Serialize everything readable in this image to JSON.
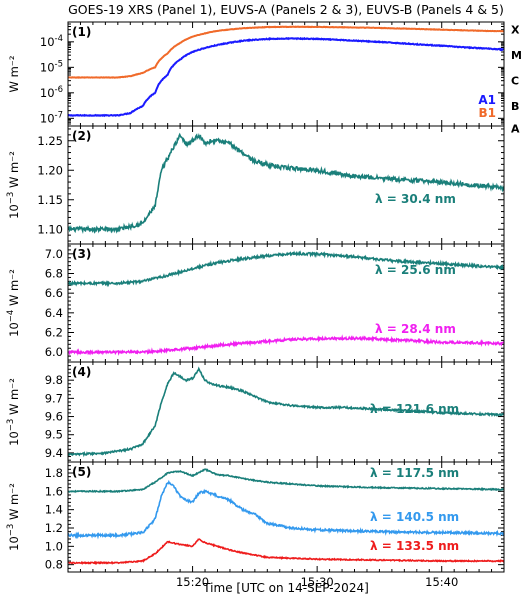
{
  "title": "GOES-19 XRS (Panel 1), EUVS-A (Panels 2 & 3), EUVS-B (Panels 4 & 5)",
  "xlabel": "Time [UTC on 14-SEP-2024]",
  "colors": {
    "A1": "#1a1aff",
    "B1": "#f06a2a",
    "teal": "#1a7f7a",
    "magenta": "#f020f0",
    "lightblue": "#3399ee",
    "red": "#ee1c1c"
  },
  "chart_data": [
    {
      "type": "line",
      "panel": "(1)",
      "ylabel": "W m⁻²",
      "yscale": "log",
      "ylim": [
        5e-08,
        0.0006
      ],
      "xlim": [
        "15:10",
        "15:45"
      ],
      "x_ticks": [
        "15:20",
        "15:30",
        "15:40"
      ],
      "y_ticks": [
        {
          "value": 1e-07,
          "mant": "10",
          "exp": "-7"
        },
        {
          "value": 1e-06,
          "mant": "10",
          "exp": "-6"
        },
        {
          "value": 1e-05,
          "mant": "10",
          "exp": "-5"
        },
        {
          "value": 0.0001,
          "mant": "10",
          "exp": "-4"
        }
      ],
      "flare_classes": [
        {
          "label": "A",
          "value": 4e-08
        },
        {
          "label": "B",
          "value": 3e-07
        },
        {
          "label": "C",
          "value": 3e-06
        },
        {
          "label": "M",
          "value": 3e-05
        },
        {
          "label": "X",
          "value": 0.0003
        }
      ],
      "series": [
        {
          "name": "A1",
          "color_key": "A1",
          "noise": 0.015,
          "log": true,
          "x": [
            "15:10",
            "15:14",
            "15:15",
            "15:16",
            "15:17",
            "15:18",
            "15:19",
            "15:20",
            "15:22",
            "15:24",
            "15:26",
            "15:28",
            "15:30",
            "15:34",
            "15:38",
            "15:42",
            "15:45"
          ],
          "y": [
            1.3e-07,
            1.3e-07,
            1.6e-07,
            3e-07,
            1e-06,
            5e-06,
            2e-05,
            4e-05,
            7.5e-05,
            0.00011,
            0.00013,
            0.000135,
            0.00013,
            0.000105,
            8e-05,
            6e-05,
            5e-05
          ]
        },
        {
          "name": "B1",
          "color_key": "B1",
          "noise": 0.008,
          "log": true,
          "x": [
            "15:10",
            "15:14",
            "15:15",
            "15:16",
            "15:17",
            "15:18",
            "15:19",
            "15:20",
            "15:22",
            "15:24",
            "15:26",
            "15:28",
            "15:30",
            "15:34",
            "15:38",
            "15:42",
            "15:45"
          ],
          "y": [
            4e-06,
            4e-06,
            4.5e-06,
            6e-06,
            1e-05,
            3.5e-05,
            9e-05,
            0.00016,
            0.00027,
            0.00034,
            0.00038,
            0.00039,
            0.000385,
            0.00036,
            0.00032,
            0.00028,
            0.00026
          ]
        }
      ],
      "legend": [
        "A1",
        "B1"
      ],
      "legend_position": "lower-right"
    },
    {
      "type": "line",
      "panel": "(2)",
      "ylabel_mant": "10",
      "ylabel_exp": "−3",
      "ylabel_unit": "W m⁻²",
      "ylim": [
        1.075,
        1.275
      ],
      "xlim": [
        "15:10",
        "15:45"
      ],
      "x_ticks": [
        "15:20",
        "15:30",
        "15:40"
      ],
      "y_ticks": [
        {
          "value": 1.1,
          "label": "1.10"
        },
        {
          "value": 1.15,
          "label": "1.15"
        },
        {
          "value": 1.2,
          "label": "1.20"
        },
        {
          "value": 1.25,
          "label": "1.25"
        }
      ],
      "series": [
        {
          "name": "λ = 30.4 nm",
          "color_key": "teal",
          "noise": 0.0035,
          "x": [
            "15:10",
            "15:14",
            "15:15",
            "15:16",
            "15:17",
            "15:17.5",
            "15:18",
            "15:18.5",
            "15:19",
            "15:19.5",
            "15:20",
            "15:20.5",
            "15:21",
            "15:21.5",
            "15:22",
            "15:23",
            "15:24",
            "15:25",
            "15:27",
            "15:30",
            "15:33",
            "15:36",
            "15:40",
            "15:45"
          ],
          "y": [
            1.1,
            1.1,
            1.105,
            1.11,
            1.14,
            1.2,
            1.22,
            1.24,
            1.26,
            1.245,
            1.25,
            1.26,
            1.245,
            1.25,
            1.25,
            1.245,
            1.23,
            1.215,
            1.205,
            1.2,
            1.19,
            1.185,
            1.18,
            1.17
          ]
        }
      ],
      "series_labels": [
        {
          "text": "λ = 30.4 nm",
          "color_key": "teal"
        }
      ]
    },
    {
      "type": "line",
      "panel": "(3)",
      "ylabel_mant": "10",
      "ylabel_exp": "−4",
      "ylabel_unit": "W m⁻²",
      "ylim": [
        5.9,
        7.1
      ],
      "xlim": [
        "15:10",
        "15:45"
      ],
      "x_ticks": [
        "15:20",
        "15:30",
        "15:40"
      ],
      "y_ticks": [
        {
          "value": 6.0,
          "label": "6.0"
        },
        {
          "value": 6.2,
          "label": "6.2"
        },
        {
          "value": 6.4,
          "label": "6.4"
        },
        {
          "value": 6.6,
          "label": "6.6"
        },
        {
          "value": 6.8,
          "label": "6.8"
        },
        {
          "value": 7.0,
          "label": "7.0"
        }
      ],
      "series": [
        {
          "name": "λ = 25.6 nm",
          "color_key": "teal",
          "noise": 0.012,
          "x": [
            "15:10",
            "15:14",
            "15:16",
            "15:18",
            "15:20",
            "15:22",
            "15:24",
            "15:26",
            "15:28",
            "15:30",
            "15:33",
            "15:36",
            "15:40",
            "15:45"
          ],
          "y": [
            6.7,
            6.7,
            6.72,
            6.78,
            6.85,
            6.91,
            6.95,
            6.98,
            7.0,
            7.0,
            6.97,
            6.93,
            6.9,
            6.86
          ]
        },
        {
          "name": "λ = 28.4 nm",
          "color_key": "magenta",
          "noise": 0.012,
          "x": [
            "15:10",
            "15:14",
            "15:16",
            "15:18",
            "15:20",
            "15:22",
            "15:25",
            "15:28",
            "15:31",
            "15:34",
            "15:37",
            "15:40",
            "15:45"
          ],
          "y": [
            6.0,
            6.0,
            6.0,
            6.02,
            6.04,
            6.07,
            6.1,
            6.13,
            6.14,
            6.14,
            6.12,
            6.1,
            6.09
          ]
        }
      ],
      "series_labels": [
        {
          "text": "λ = 25.6 nm",
          "color_key": "teal"
        },
        {
          "text": "λ = 28.4 nm",
          "color_key": "magenta"
        }
      ]
    },
    {
      "type": "line",
      "panel": "(4)",
      "ylabel_mant": "10",
      "ylabel_exp": "−3",
      "ylabel_unit": "W m⁻²",
      "ylim": [
        9.35,
        9.9
      ],
      "xlim": [
        "15:10",
        "15:45"
      ],
      "x_ticks": [
        "15:20",
        "15:30",
        "15:40"
      ],
      "y_ticks": [
        {
          "value": 9.4,
          "label": "9.4"
        },
        {
          "value": 9.5,
          "label": "9.5"
        },
        {
          "value": 9.6,
          "label": "9.6"
        },
        {
          "value": 9.7,
          "label": "9.7"
        },
        {
          "value": 9.8,
          "label": "9.8"
        }
      ],
      "series": [
        {
          "name": "λ = 121.6 nm",
          "color_key": "teal",
          "noise": 0.005,
          "x": [
            "15:10",
            "15:13",
            "15:15",
            "15:16",
            "15:17",
            "15:17.5",
            "15:18",
            "15:18.5",
            "15:19",
            "15:19.5",
            "15:20",
            "15:20.5",
            "15:21",
            "15:21.5",
            "15:22",
            "15:23",
            "15:24",
            "15:25",
            "15:26",
            "15:28",
            "15:30",
            "15:32",
            "15:35",
            "15:38",
            "15:40",
            "15:45"
          ],
          "y": [
            9.39,
            9.4,
            9.42,
            9.45,
            9.55,
            9.68,
            9.78,
            9.84,
            9.82,
            9.8,
            9.81,
            9.86,
            9.8,
            9.78,
            9.77,
            9.76,
            9.74,
            9.71,
            9.68,
            9.66,
            9.65,
            9.65,
            9.64,
            9.63,
            9.62,
            9.61
          ]
        }
      ],
      "series_labels": [
        {
          "text": "λ = 121.6 nm",
          "color_key": "teal"
        }
      ]
    },
    {
      "type": "line",
      "panel": "(5)",
      "ylabel_mant": "10",
      "ylabel_exp": "−3",
      "ylabel_unit": "W m⁻²",
      "ylim": [
        0.72,
        1.92
      ],
      "xlim": [
        "15:10",
        "15:45"
      ],
      "x_ticks": [
        "15:20",
        "15:30",
        "15:40"
      ],
      "y_ticks": [
        {
          "value": 0.8,
          "label": "0.8"
        },
        {
          "value": 1.0,
          "label": "1.0"
        },
        {
          "value": 1.2,
          "label": "1.2"
        },
        {
          "value": 1.4,
          "label": "1.4"
        },
        {
          "value": 1.6,
          "label": "1.6"
        },
        {
          "value": 1.8,
          "label": "1.8"
        }
      ],
      "series": [
        {
          "name": "λ = 117.5 nm",
          "color_key": "teal",
          "noise": 0.006,
          "x": [
            "15:10",
            "15:14",
            "15:16",
            "15:17",
            "15:18",
            "15:19",
            "15:20",
            "15:21",
            "15:22",
            "15:23",
            "15:24",
            "15:26",
            "15:30",
            "15:35",
            "15:40",
            "15:45"
          ],
          "y": [
            1.6,
            1.6,
            1.62,
            1.7,
            1.8,
            1.82,
            1.77,
            1.84,
            1.78,
            1.77,
            1.74,
            1.7,
            1.66,
            1.64,
            1.63,
            1.62
          ]
        },
        {
          "name": "λ = 140.5 nm",
          "color_key": "lightblue",
          "noise": 0.012,
          "x": [
            "15:10",
            "15:14",
            "15:16",
            "15:17",
            "15:17.5",
            "15:18",
            "15:18.5",
            "15:19",
            "15:19.5",
            "15:20",
            "15:20.5",
            "15:21",
            "15:22",
            "15:23",
            "15:24",
            "15:25",
            "15:26",
            "15:28",
            "15:30",
            "15:35",
            "15:40",
            "15:45"
          ],
          "y": [
            1.12,
            1.12,
            1.15,
            1.3,
            1.55,
            1.7,
            1.65,
            1.55,
            1.5,
            1.48,
            1.58,
            1.6,
            1.55,
            1.5,
            1.4,
            1.35,
            1.25,
            1.2,
            1.18,
            1.16,
            1.15,
            1.14
          ]
        },
        {
          "name": "λ = 133.5 nm",
          "color_key": "red",
          "noise": 0.006,
          "x": [
            "15:10",
            "15:14",
            "15:16",
            "15:17",
            "15:18",
            "15:19",
            "15:20",
            "15:20.5",
            "15:21",
            "15:22",
            "15:23",
            "15:24",
            "15:26",
            "15:30",
            "15:35",
            "15:40",
            "15:45"
          ],
          "y": [
            0.82,
            0.82,
            0.84,
            0.92,
            1.05,
            1.02,
            1.0,
            1.08,
            1.04,
            1.0,
            0.96,
            0.93,
            0.88,
            0.86,
            0.85,
            0.84,
            0.84
          ]
        }
      ],
      "series_labels": [
        {
          "text": "λ = 117.5 nm",
          "color_key": "teal"
        },
        {
          "text": "λ = 140.5 nm",
          "color_key": "lightblue"
        },
        {
          "text": "λ = 133.5 nm",
          "color_key": "red"
        }
      ]
    }
  ]
}
